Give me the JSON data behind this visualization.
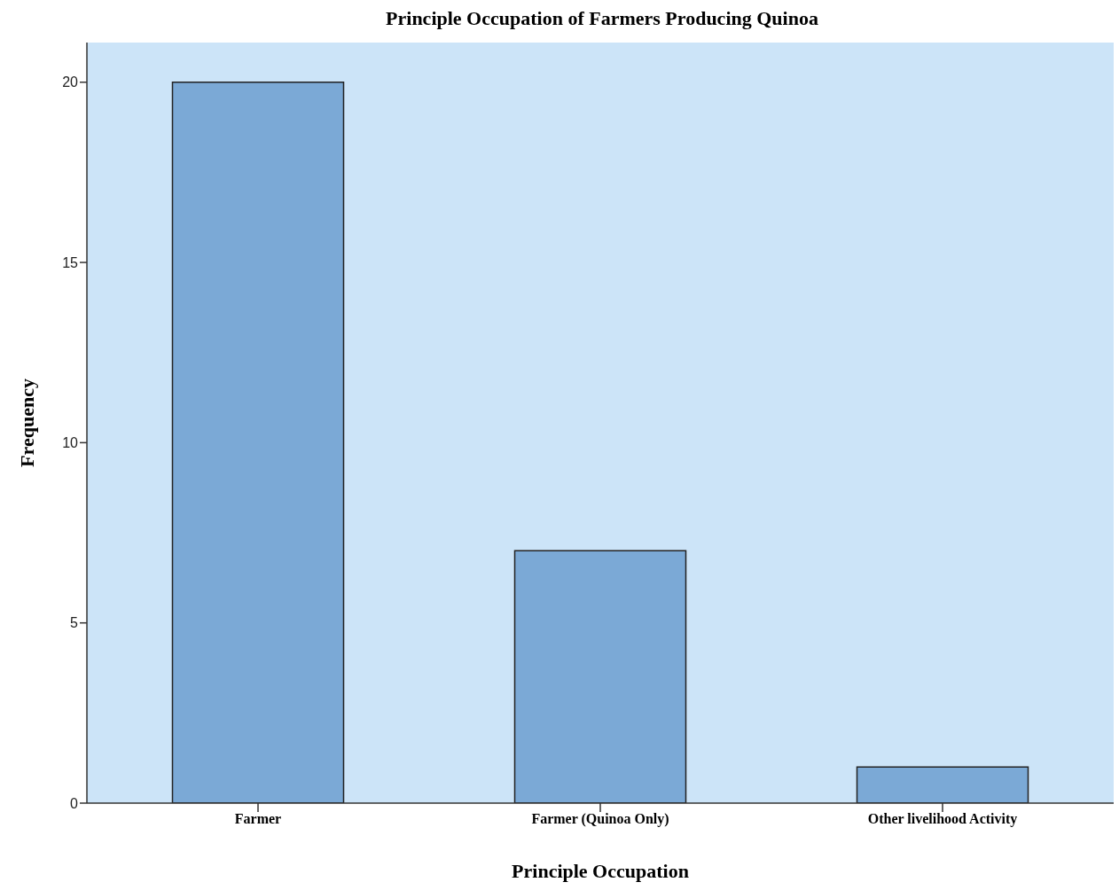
{
  "chart_data": {
    "type": "bar",
    "title": "Principle Occupation of Farmers Producing Quinoa",
    "xlabel": "Principle Occupation",
    "ylabel": "Frequency",
    "categories": [
      "Farmer",
      "Farmer (Quinoa Only)",
      "Other livelihood Activity"
    ],
    "values": [
      20,
      7,
      1
    ],
    "color": "#7ba9d6",
    "ylim": [
      0,
      21.1
    ],
    "yticks": [
      0,
      5,
      10,
      15,
      20
    ],
    "grid": false
  }
}
